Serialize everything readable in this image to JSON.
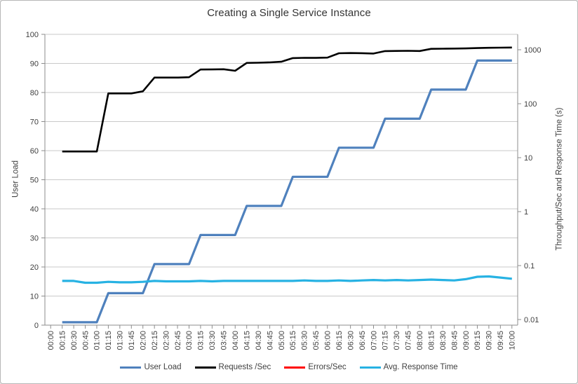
{
  "chart_data": {
    "type": "line",
    "title": "Creating a Single Service Instance",
    "xlabel": "",
    "ylabel_left": "User Load",
    "ylabel_right": "Throughput/Sec and Response Time (s)",
    "grid": "horizontal",
    "legend_position": "bottom",
    "x_categories": [
      "00:00",
      "00:15",
      "00:30",
      "00:45",
      "01:00",
      "01:15",
      "01:30",
      "01:45",
      "02:00",
      "02:15",
      "02:30",
      "02:45",
      "03:00",
      "03:15",
      "03:30",
      "03:45",
      "04:00",
      "04:15",
      "04:30",
      "04:45",
      "05:00",
      "05:15",
      "05:30",
      "05:45",
      "06:00",
      "06:15",
      "06:30",
      "06:45",
      "07:00",
      "07:15",
      "07:30",
      "07:45",
      "08:00",
      "08:15",
      "08:30",
      "08:45",
      "09:00",
      "09:15",
      "09:30",
      "09:45",
      "10:00"
    ],
    "left_axis": {
      "min": 0,
      "max": 100,
      "tick_values": [
        0,
        10,
        20,
        30,
        40,
        50,
        60,
        70,
        80,
        90,
        100
      ],
      "tick_labels": [
        "0",
        "10",
        "20",
        "30",
        "40",
        "50",
        "60",
        "70",
        "80",
        "90",
        "100"
      ]
    },
    "right_axis": {
      "scale": "log",
      "tick_values": [
        0.01,
        0.1,
        1,
        10,
        100,
        1000
      ],
      "tick_labels": [
        "0.01",
        "0.1",
        "1",
        "10",
        "100",
        "1000"
      ]
    },
    "series": [
      {
        "name": "User Load",
        "color": "#4F81BD",
        "axis": "left",
        "values": [
          null,
          1,
          1,
          1,
          1,
          11,
          11,
          11,
          11,
          21,
          21,
          21,
          21,
          31,
          31,
          31,
          31,
          41,
          41,
          41,
          41,
          51,
          51,
          51,
          51,
          61,
          61,
          61,
          61,
          71,
          71,
          71,
          71,
          81,
          81,
          81,
          81,
          91,
          91,
          91,
          91
        ]
      },
      {
        "name": "Requests /Sec",
        "color": "#000000",
        "axis": "right",
        "values": [
          null,
          13,
          13,
          13,
          13,
          155,
          155,
          155,
          170,
          305,
          305,
          305,
          310,
          430,
          432,
          436,
          408,
          570,
          575,
          583,
          600,
          700,
          710,
          706,
          715,
          860,
          868,
          864,
          852,
          945,
          950,
          955,
          948,
          1040,
          1046,
          1052,
          1058,
          1075,
          1088,
          1094,
          1100
        ]
      },
      {
        "name": "Errors/Sec",
        "color": "#FF0000",
        "axis": "right",
        "values": []
      },
      {
        "name": "Avg. Response Time",
        "color": "#27B2E3",
        "axis": "right",
        "values": [
          null,
          0.052,
          0.052,
          0.048,
          0.048,
          0.05,
          0.049,
          0.049,
          0.05,
          0.052,
          0.051,
          0.051,
          0.051,
          0.052,
          0.051,
          0.052,
          0.052,
          0.052,
          0.052,
          0.052,
          0.052,
          0.052,
          0.053,
          0.052,
          0.052,
          0.053,
          0.052,
          0.053,
          0.054,
          0.053,
          0.054,
          0.053,
          0.054,
          0.055,
          0.054,
          0.053,
          0.056,
          0.062,
          0.063,
          0.06,
          0.057
        ]
      }
    ],
    "colors": {
      "gridline": "#C9C9C9",
      "axis_line": "#8C8C8C",
      "tick_text": "#404040",
      "background": "#FFFFFF"
    }
  }
}
